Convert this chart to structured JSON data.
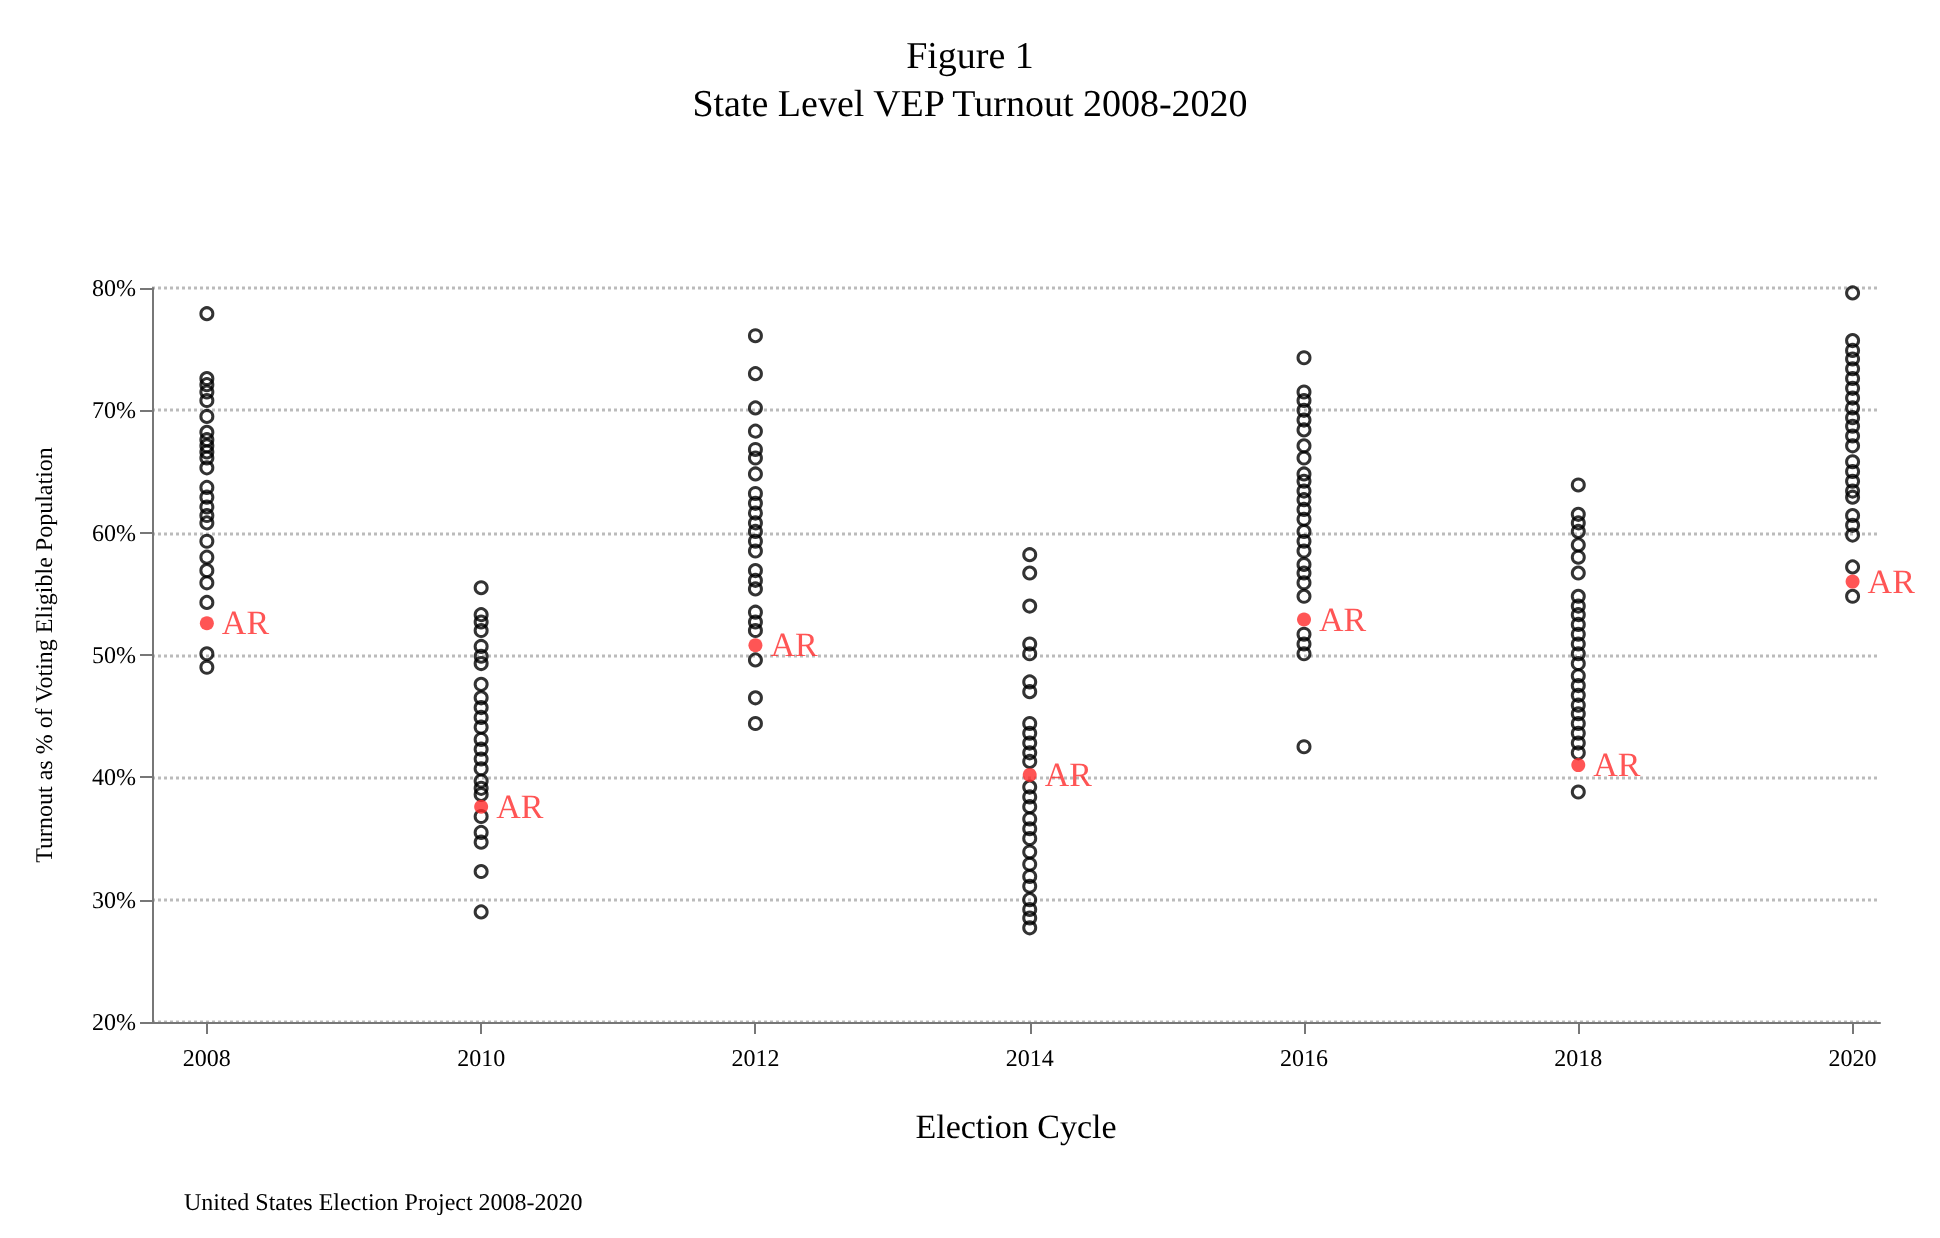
{
  "chart_data": {
    "type": "scatter",
    "title": "Figure 1",
    "subtitle": "State Level VEP Turnout 2008-2020",
    "xlabel": "Election Cycle",
    "ylabel": "Turnout as % of Voting Eligible Population",
    "annotations": [
      "United States Election Project 2008-2020"
    ],
    "xlim": [
      2007.6,
      2020.2
    ],
    "xticks": [
      2008,
      2010,
      2012,
      2014,
      2016,
      2018,
      2020
    ],
    "ylim": [
      20,
      80
    ],
    "yticks": [
      {
        "value": 20,
        "label": "20%"
      },
      {
        "value": 30,
        "label": "30%"
      },
      {
        "value": 40,
        "label": "40%"
      },
      {
        "value": 50,
        "label": "50%"
      },
      {
        "value": 60,
        "label": "60%"
      },
      {
        "value": 70,
        "label": "70%"
      },
      {
        "value": 80,
        "label": "80%"
      }
    ],
    "grid": "y",
    "legend": false,
    "marker": "circle",
    "series": [
      {
        "color": "#000000",
        "x": [
          2008,
          2008,
          2008,
          2008,
          2008,
          2008,
          2008,
          2008,
          2008,
          2008,
          2008,
          2008,
          2008,
          2008,
          2008,
          2008,
          2008,
          2008,
          2008,
          2008,
          2008,
          2008,
          2008,
          2008,
          2010,
          2010,
          2010,
          2010,
          2010,
          2010,
          2010,
          2010,
          2010,
          2010,
          2010,
          2010,
          2010,
          2010,
          2010,
          2010,
          2010,
          2010,
          2010,
          2010,
          2010,
          2010,
          2010,
          2010,
          2012,
          2012,
          2012,
          2012,
          2012,
          2012,
          2012,
          2012,
          2012,
          2012,
          2012,
          2012,
          2012,
          2012,
          2012,
          2012,
          2012,
          2012,
          2012,
          2012,
          2012,
          2012,
          2012,
          2014,
          2014,
          2014,
          2014,
          2014,
          2014,
          2014,
          2014,
          2014,
          2014,
          2014,
          2014,
          2014,
          2014,
          2014,
          2014,
          2014,
          2014,
          2014,
          2014,
          2014,
          2014,
          2014,
          2014,
          2014,
          2014,
          2016,
          2016,
          2016,
          2016,
          2016,
          2016,
          2016,
          2016,
          2016,
          2016,
          2016,
          2016,
          2016,
          2016,
          2016,
          2016,
          2016,
          2016,
          2016,
          2016,
          2016,
          2016,
          2016,
          2016,
          2016,
          2018,
          2018,
          2018,
          2018,
          2018,
          2018,
          2018,
          2018,
          2018,
          2018,
          2018,
          2018,
          2018,
          2018,
          2018,
          2018,
          2018,
          2018,
          2018,
          2018,
          2018,
          2018,
          2018,
          2018,
          2018,
          2020,
          2020,
          2020,
          2020,
          2020,
          2020,
          2020,
          2020,
          2020,
          2020,
          2020,
          2020,
          2020,
          2020,
          2020,
          2020,
          2020,
          2020,
          2020,
          2020,
          2020,
          2020,
          2020
        ],
        "values": [
          77.9,
          72.6,
          72.1,
          71.5,
          70.8,
          69.5,
          68.2,
          67.6,
          67.1,
          66.6,
          66.1,
          65.3,
          63.7,
          62.9,
          62.1,
          61.4,
          60.8,
          59.3,
          58.0,
          56.9,
          55.9,
          54.3,
          50.1,
          49.0,
          55.5,
          53.3,
          52.7,
          52.0,
          50.7,
          49.9,
          49.3,
          47.6,
          46.5,
          45.7,
          44.9,
          44.1,
          43.1,
          42.3,
          41.5,
          40.7,
          39.7,
          39.1,
          38.6,
          36.8,
          35.5,
          34.7,
          32.3,
          29.0,
          76.1,
          73.0,
          70.2,
          68.3,
          66.8,
          66.1,
          64.8,
          63.2,
          62.4,
          61.6,
          60.8,
          60.1,
          59.3,
          58.5,
          56.9,
          56.1,
          55.4,
          53.5,
          52.7,
          52.0,
          49.6,
          46.5,
          44.4,
          58.2,
          56.7,
          54.0,
          50.9,
          50.1,
          47.8,
          47.0,
          44.4,
          43.6,
          42.8,
          42.0,
          41.3,
          39.2,
          38.4,
          37.6,
          36.6,
          35.8,
          35.0,
          33.9,
          32.9,
          31.9,
          31.1,
          30.0,
          29.2,
          28.5,
          27.7,
          74.3,
          71.5,
          70.8,
          70.0,
          69.2,
          68.4,
          67.1,
          66.1,
          64.8,
          64.2,
          63.4,
          62.7,
          61.9,
          61.1,
          60.1,
          59.3,
          58.5,
          57.4,
          56.7,
          55.9,
          54.8,
          51.7,
          50.9,
          50.1,
          42.5,
          63.9,
          61.5,
          60.8,
          60.1,
          59.0,
          58.0,
          56.7,
          54.8,
          54.0,
          53.3,
          52.5,
          51.7,
          50.9,
          50.1,
          49.3,
          48.3,
          47.5,
          46.7,
          45.9,
          45.2,
          44.4,
          43.6,
          42.8,
          42.0,
          38.8,
          79.6,
          75.7,
          74.9,
          74.2,
          73.4,
          72.6,
          71.8,
          71.0,
          70.2,
          69.4,
          68.7,
          67.9,
          67.1,
          65.8,
          65.0,
          64.2,
          63.4,
          62.9,
          61.4,
          60.6,
          59.8,
          57.2,
          54.8
        ]
      },
      {
        "name": "AR",
        "color": "#ff2a2a",
        "x": [
          2008,
          2010,
          2012,
          2014,
          2016,
          2018,
          2020
        ],
        "values": [
          52.6,
          37.6,
          50.8,
          40.2,
          52.9,
          41.0,
          56.0
        ]
      }
    ]
  }
}
